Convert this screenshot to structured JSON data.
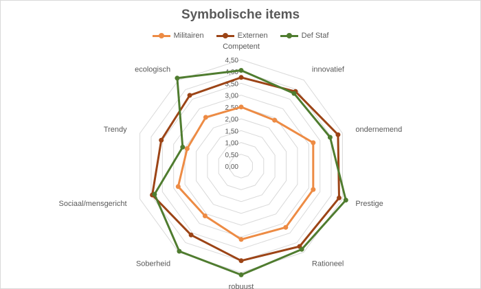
{
  "chart_data": {
    "type": "radar",
    "title": "Symbolische items",
    "axes": [
      "Competent",
      "innovatief",
      "ondernemend",
      "Prestige",
      "Rationeel",
      "robuust",
      "Soberheid",
      "Sociaal/mensgericht",
      "Trendy",
      "ecologisch"
    ],
    "r_ticks": [
      "0,00",
      "0,50",
      "1,00",
      "1,50",
      "2,00",
      "2,50",
      "3,00",
      "3,50",
      "4,00",
      "4,50"
    ],
    "rlim": [
      0,
      4.5
    ],
    "legend_position": "top",
    "series": [
      {
        "name": "Militairen",
        "color": "#ed8b44",
        "values": [
          2.5,
          2.4,
          3.2,
          3.2,
          3.2,
          3.1,
          2.6,
          2.8,
          2.4,
          2.55
        ]
      },
      {
        "name": "Externen",
        "color": "#9c4416",
        "values": [
          3.75,
          3.9,
          4.3,
          4.35,
          4.2,
          4.0,
          3.6,
          3.95,
          3.55,
          3.7
        ]
      },
      {
        "name": "Def Staf",
        "color": "#4f7c2f",
        "values": [
          4.05,
          3.8,
          3.95,
          4.65,
          4.35,
          4.6,
          4.45,
          3.85,
          2.6,
          4.6
        ]
      }
    ]
  }
}
